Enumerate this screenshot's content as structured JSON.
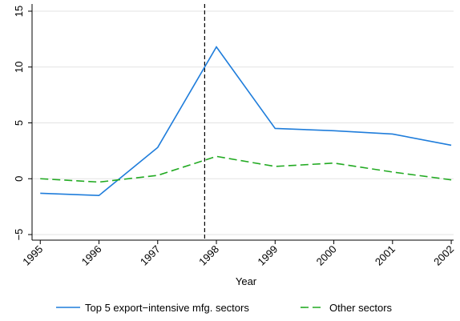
{
  "chart_data": {
    "type": "line",
    "x_label": "Year",
    "x": [
      1995,
      1996,
      1997,
      1998,
      1999,
      2000,
      2001,
      2002
    ],
    "series": [
      {
        "name": "Top 5 export−intensive mfg. sectors",
        "color": "#1f7ddb",
        "dash": "solid",
        "values": [
          -1.3,
          -1.5,
          2.8,
          11.8,
          4.5,
          4.3,
          4.0,
          3.0
        ]
      },
      {
        "name": "Other sectors",
        "color": "#22aa22",
        "dash": "dashed",
        "values": [
          0,
          -0.3,
          0.3,
          2.0,
          1.1,
          1.4,
          0.6,
          -0.1
        ]
      }
    ],
    "vlines": [
      1997.8
    ],
    "xlim": [
      1994.86,
      2002.04
    ],
    "xticks": [
      1995,
      1996,
      1997,
      1998,
      1999,
      2000,
      2001,
      2002
    ],
    "ylim": [
      -5.5,
      15.5
    ],
    "yticks": [
      {
        "value": -5,
        "label": "−5"
      },
      0,
      5,
      10,
      15
    ],
    "grid": true,
    "legend": "bottom"
  }
}
